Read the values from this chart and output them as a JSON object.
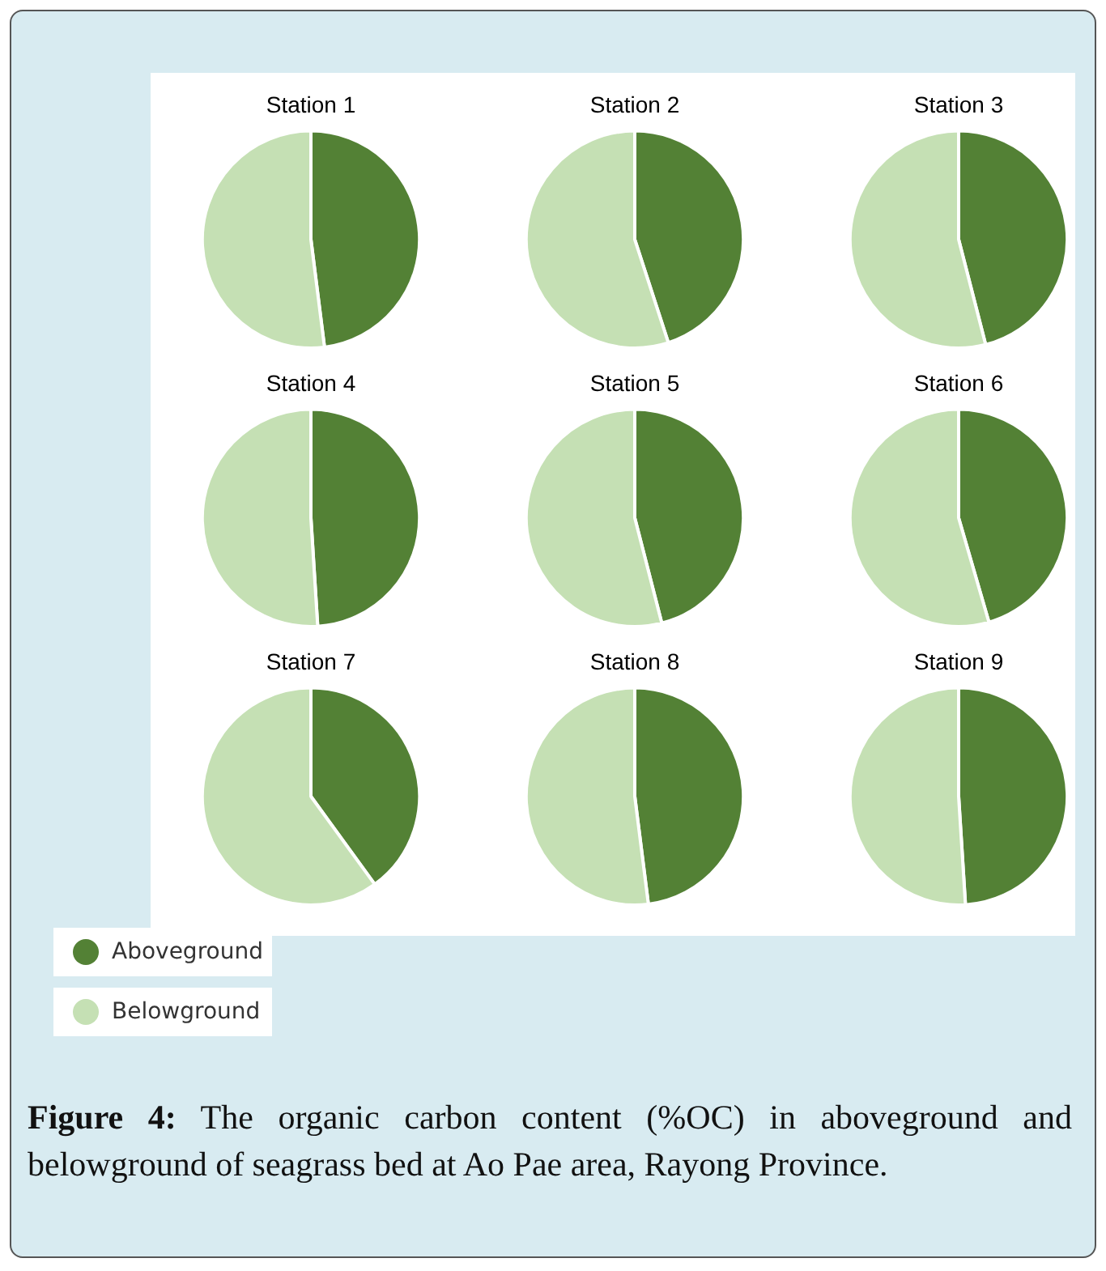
{
  "chart_data": [
    {
      "type": "pie",
      "title": "Station 1",
      "categories": [
        "Aboveground",
        "Belowground"
      ],
      "values": [
        48,
        52
      ],
      "colors": [
        "#538135",
        "#c5e0b4"
      ],
      "legend": "bottom left",
      "annotations": [
        "Figure 4: The organic carbon content (%OC) in aboveground and belowground of seagrass bed at Ao Pae area, Rayong Province."
      ]
    },
    {
      "type": "pie",
      "title": "Station 2",
      "values": [
        45,
        55
      ],
      "colors": [
        "#538135",
        "#c5e0b4"
      ]
    },
    {
      "type": "pie",
      "title": "Station 3",
      "values": [
        46,
        54
      ],
      "colors": [
        "#538135",
        "#c5e0b4"
      ]
    },
    {
      "type": "pie",
      "title": "Station 4",
      "values": [
        49,
        51
      ],
      "colors": [
        "#538135",
        "#c5e0b4"
      ]
    },
    {
      "type": "pie",
      "title": "Station 5",
      "values": [
        46,
        54
      ],
      "colors": [
        "#538135",
        "#c5e0b4"
      ]
    },
    {
      "type": "pie",
      "title": "Station 6",
      "values": [
        45.5,
        54.5
      ],
      "colors": [
        "#538135",
        "#c5e0b4"
      ]
    },
    {
      "type": "pie",
      "title": "Station 7",
      "values": [
        40,
        60
      ],
      "colors": [
        "#538135",
        "#c5e0b4"
      ]
    },
    {
      "type": "pie",
      "title": "Station 8",
      "values": [
        48,
        52
      ],
      "colors": [
        "#538135",
        "#c5e0b4"
      ]
    },
    {
      "type": "pie",
      "title": "Station 9",
      "values": [
        49,
        51
      ],
      "colors": [
        "#538135",
        "#c5e0b4"
      ]
    }
  ]
}
